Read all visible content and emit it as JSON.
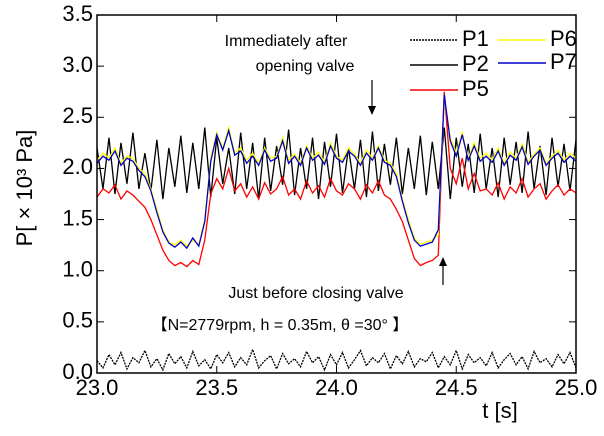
{
  "chart_data": {
    "type": "line",
    "xlabel": "t [s]",
    "ylabel": "P[ × 10³ Pa]",
    "xlim": [
      23.0,
      25.0
    ],
    "ylim": [
      0.0,
      3.5
    ],
    "xticks": [
      {
        "value": 23.0,
        "label": "23.0"
      },
      {
        "value": 23.5,
        "label": "23.5"
      },
      {
        "value": 24.0,
        "label": "24.0"
      },
      {
        "value": 24.5,
        "label": "24.5"
      },
      {
        "value": 25.0,
        "label": "25.0"
      }
    ],
    "yticks": [
      {
        "value": 0.0,
        "label": "0.0"
      },
      {
        "value": 0.5,
        "label": "0.5"
      },
      {
        "value": 1.0,
        "label": "1.0"
      },
      {
        "value": 1.5,
        "label": "1.5"
      },
      {
        "value": 2.0,
        "label": "2.0"
      },
      {
        "value": 2.5,
        "label": "2.5"
      },
      {
        "value": 3.0,
        "label": "3.0"
      },
      {
        "value": 3.5,
        "label": "3.5"
      }
    ],
    "annotations": {
      "opening": [
        "Immediately after",
        "opening valve"
      ],
      "closing": "Just before closing valve",
      "conditions": "【N=2779rpm, h = 0.35m, θ =30° 】"
    },
    "x": [
      23.0,
      23.025,
      23.05,
      23.075,
      23.1,
      23.125,
      23.15,
      23.175,
      23.2,
      23.225,
      23.25,
      23.275,
      23.3,
      23.325,
      23.35,
      23.375,
      23.4,
      23.425,
      23.45,
      23.475,
      23.5,
      23.525,
      23.55,
      23.575,
      23.6,
      23.625,
      23.65,
      23.675,
      23.7,
      23.725,
      23.75,
      23.775,
      23.8,
      23.825,
      23.85,
      23.875,
      23.9,
      23.925,
      23.95,
      23.975,
      24.0,
      24.025,
      24.05,
      24.075,
      24.1,
      24.125,
      24.15,
      24.175,
      24.2,
      24.225,
      24.25,
      24.275,
      24.3,
      24.325,
      24.35,
      24.375,
      24.4,
      24.425,
      24.45,
      24.475,
      24.5,
      24.525,
      24.55,
      24.575,
      24.6,
      24.625,
      24.65,
      24.675,
      24.7,
      24.725,
      24.75,
      24.775,
      24.8,
      24.825,
      24.85,
      24.875,
      24.9,
      24.925,
      24.95,
      24.975,
      25.0
    ],
    "series": [
      {
        "name": "P1",
        "color": "#000000",
        "dash": true,
        "values": [
          0.12,
          0.05,
          0.18,
          0.08,
          0.2,
          0.04,
          0.15,
          0.1,
          0.22,
          0.06,
          0.14,
          0.03,
          0.19,
          0.09,
          0.16,
          0.05,
          0.21,
          0.07,
          0.13,
          0.04,
          0.18,
          0.1,
          0.2,
          0.06,
          0.15,
          0.08,
          0.23,
          0.05,
          0.12,
          0.17,
          0.04,
          0.19,
          0.09,
          0.14,
          0.06,
          0.21,
          0.1,
          0.16,
          0.03,
          0.18,
          0.08,
          0.2,
          0.05,
          0.13,
          0.22,
          0.07,
          0.15,
          0.1,
          0.19,
          0.04,
          0.17,
          0.09,
          0.21,
          0.06,
          0.14,
          0.11,
          0.2,
          0.05,
          0.16,
          0.08,
          0.22,
          0.04,
          0.18,
          0.1,
          0.15,
          0.07,
          0.2,
          0.05,
          0.13,
          0.19,
          0.08,
          0.16,
          0.04,
          0.21,
          0.1,
          0.14,
          0.06,
          0.18,
          0.09,
          0.2,
          0.05
        ]
      },
      {
        "name": "P2",
        "color": "#000000",
        "values": [
          2.2,
          1.8,
          2.3,
          1.75,
          2.25,
          1.85,
          2.35,
          1.8,
          2.15,
          1.78,
          2.28,
          1.7,
          2.2,
          1.82,
          2.32,
          1.76,
          2.25,
          1.8,
          2.4,
          1.72,
          2.3,
          1.85,
          2.2,
          1.75,
          2.35,
          1.8,
          2.25,
          1.7,
          2.3,
          1.78,
          2.22,
          1.84,
          2.38,
          1.74,
          2.2,
          1.8,
          2.3,
          1.7,
          2.26,
          1.82,
          2.34,
          1.76,
          2.2,
          1.8,
          2.28,
          1.72,
          2.36,
          1.78,
          2.24,
          1.84,
          2.3,
          1.75,
          2.2,
          1.8,
          2.32,
          1.74,
          2.26,
          1.8,
          2.4,
          1.7,
          2.3,
          1.82,
          2.24,
          1.76,
          2.34,
          1.8,
          2.2,
          1.72,
          2.3,
          1.84,
          2.26,
          1.76,
          2.36,
          1.8,
          2.22,
          1.74,
          2.3,
          1.82,
          2.24,
          1.78,
          2.28
        ]
      },
      {
        "name": "P5",
        "color": "#ff0000",
        "values": [
          1.72,
          1.8,
          1.76,
          1.84,
          1.7,
          1.78,
          1.74,
          1.68,
          1.62,
          1.5,
          1.35,
          1.2,
          1.1,
          1.05,
          1.08,
          1.04,
          1.1,
          1.06,
          1.3,
          1.75,
          1.9,
          1.8,
          2.0,
          1.78,
          1.85,
          1.72,
          1.82,
          1.7,
          1.86,
          1.75,
          1.8,
          1.92,
          1.74,
          1.8,
          1.7,
          1.88,
          1.76,
          1.83,
          1.72,
          1.9,
          1.78,
          1.74,
          1.85,
          1.8,
          1.7,
          1.84,
          1.76,
          1.88,
          1.74,
          1.7,
          1.6,
          1.48,
          1.3,
          1.12,
          1.05,
          1.08,
          1.1,
          1.15,
          2.75,
          2.0,
          1.85,
          2.1,
          1.8,
          1.95,
          1.78,
          1.8,
          1.74,
          1.86,
          1.7,
          1.82,
          1.76,
          1.9,
          1.72,
          1.8,
          1.85,
          1.7,
          1.78,
          1.84,
          1.74,
          1.8,
          1.76
        ]
      },
      {
        "name": "P6",
        "color": "#ffff00",
        "values": [
          2.08,
          2.15,
          2.1,
          2.2,
          2.05,
          2.12,
          2.1,
          2.0,
          1.95,
          1.8,
          1.6,
          1.4,
          1.28,
          1.25,
          1.3,
          1.24,
          1.3,
          1.26,
          1.5,
          2.1,
          2.35,
          2.2,
          2.4,
          2.15,
          2.2,
          2.08,
          2.15,
          2.05,
          2.2,
          2.1,
          2.12,
          2.3,
          2.08,
          2.14,
          2.05,
          2.22,
          2.1,
          2.16,
          2.06,
          2.25,
          2.12,
          2.08,
          2.2,
          2.14,
          2.05,
          2.18,
          2.1,
          2.22,
          2.08,
          2.05,
          1.95,
          1.7,
          1.5,
          1.32,
          1.26,
          1.28,
          1.3,
          1.35,
          2.7,
          2.3,
          2.15,
          2.35,
          2.1,
          2.25,
          2.1,
          2.15,
          2.08,
          2.2,
          2.05,
          2.16,
          2.1,
          2.24,
          2.06,
          2.14,
          2.2,
          2.05,
          2.12,
          2.18,
          2.08,
          2.15,
          2.1
        ]
      },
      {
        "name": "P7",
        "color": "#0000cc",
        "values": [
          2.05,
          2.12,
          2.08,
          2.17,
          2.03,
          2.1,
          2.07,
          1.98,
          1.92,
          1.78,
          1.57,
          1.38,
          1.27,
          1.23,
          1.28,
          1.22,
          1.32,
          1.24,
          1.48,
          2.07,
          2.33,
          2.18,
          2.37,
          2.13,
          2.17,
          2.05,
          2.12,
          2.03,
          2.18,
          2.07,
          2.1,
          2.27,
          2.05,
          2.12,
          2.03,
          2.2,
          2.08,
          2.13,
          2.04,
          2.22,
          2.1,
          2.06,
          2.17,
          2.12,
          2.03,
          2.15,
          2.08,
          2.2,
          2.06,
          2.03,
          1.92,
          1.68,
          1.47,
          1.3,
          1.24,
          1.26,
          1.28,
          1.4,
          2.72,
          2.27,
          2.12,
          2.33,
          2.08,
          2.22,
          2.07,
          2.12,
          2.06,
          2.17,
          2.03,
          2.13,
          2.08,
          2.21,
          2.04,
          2.12,
          2.18,
          2.03,
          2.1,
          2.15,
          2.06,
          2.12,
          2.07
        ]
      }
    ]
  }
}
